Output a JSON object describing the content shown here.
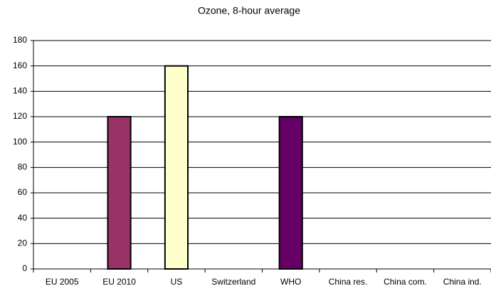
{
  "chart_data": {
    "type": "bar",
    "title": "Ozone, 8-hour average",
    "categories": [
      "EU 2005",
      "EU 2010",
      "US",
      "Switzerland",
      "WHO",
      "China res.",
      "China com.",
      "China ind."
    ],
    "values": [
      null,
      120,
      160,
      null,
      120,
      null,
      null,
      null
    ],
    "colors": [
      null,
      "#993366",
      "#ffffcc",
      null,
      "#660066",
      null,
      null,
      null
    ],
    "ylim": [
      0,
      180
    ],
    "yticks": [
      0,
      20,
      40,
      60,
      80,
      100,
      120,
      140,
      160,
      180
    ],
    "grid": true
  }
}
